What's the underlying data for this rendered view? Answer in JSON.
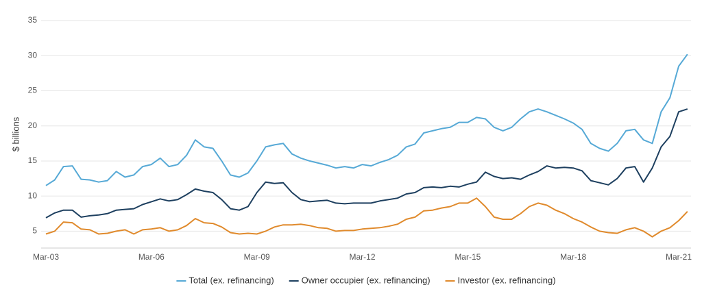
{
  "chart_data": {
    "type": "line",
    "y_label": "$ billions",
    "categories": [
      "Mar-03",
      null,
      null,
      null,
      null,
      null,
      null,
      null,
      null,
      null,
      null,
      null,
      "Mar-06",
      null,
      null,
      null,
      null,
      null,
      null,
      null,
      null,
      null,
      null,
      null,
      "Mar-09",
      null,
      null,
      null,
      null,
      null,
      null,
      null,
      null,
      null,
      null,
      null,
      "Mar-12",
      null,
      null,
      null,
      null,
      null,
      null,
      null,
      null,
      null,
      null,
      null,
      "Mar-15",
      null,
      null,
      null,
      null,
      null,
      null,
      null,
      null,
      null,
      null,
      null,
      "Mar-18",
      null,
      null,
      null,
      null,
      null,
      null,
      null,
      null,
      null,
      null,
      null,
      "Mar-21",
      null
    ],
    "series": [
      {
        "name": "Total (ex. refinancing)",
        "color": "#56a9d6",
        "values": [
          11.5,
          12.3,
          14.2,
          14.3,
          12.4,
          12.3,
          12.0,
          12.2,
          13.5,
          12.7,
          13.0,
          14.2,
          14.5,
          15.4,
          14.2,
          14.5,
          15.8,
          18.0,
          17.0,
          16.8,
          15.0,
          13.0,
          12.7,
          13.3,
          15.0,
          17.0,
          17.3,
          17.5,
          16.0,
          15.4,
          15.0,
          14.7,
          14.4,
          14.0,
          14.2,
          14.0,
          14.5,
          14.3,
          14.8,
          15.2,
          15.8,
          17.0,
          17.4,
          19.0,
          19.3,
          19.6,
          19.8,
          20.5,
          20.5,
          21.2,
          21.0,
          19.8,
          19.3,
          19.8,
          21.0,
          22.0,
          22.4,
          22.0,
          21.5,
          21.0,
          20.4,
          19.5,
          17.5,
          16.8,
          16.4,
          17.5,
          19.3,
          19.5,
          18.0,
          17.5,
          22.0,
          24.0,
          28.5,
          30.2
        ]
      },
      {
        "name": "Owner occupier (ex. refinancing)",
        "color": "#1d3f5f",
        "values": [
          6.9,
          7.6,
          8.0,
          8.0,
          7.0,
          7.2,
          7.3,
          7.5,
          8.0,
          8.1,
          8.2,
          8.8,
          9.2,
          9.6,
          9.3,
          9.5,
          10.2,
          11.0,
          10.7,
          10.5,
          9.5,
          8.2,
          8.0,
          8.5,
          10.5,
          12.0,
          11.8,
          11.9,
          10.5,
          9.5,
          9.2,
          9.3,
          9.4,
          9.0,
          8.9,
          9.0,
          9.0,
          9.0,
          9.3,
          9.5,
          9.7,
          10.3,
          10.5,
          11.2,
          11.3,
          11.2,
          11.4,
          11.3,
          11.7,
          12.0,
          13.4,
          12.8,
          12.5,
          12.6,
          12.4,
          13.0,
          13.5,
          14.3,
          14.0,
          14.1,
          14.0,
          13.6,
          12.2,
          11.9,
          11.6,
          12.5,
          14.0,
          14.2,
          12.0,
          14.0,
          17.0,
          18.5,
          22.0,
          22.4
        ]
      },
      {
        "name": "Investor (ex. refinancing)",
        "color": "#e08a2c",
        "values": [
          4.6,
          5.0,
          6.3,
          6.2,
          5.3,
          5.2,
          4.6,
          4.7,
          5.0,
          5.2,
          4.6,
          5.2,
          5.3,
          5.5,
          5.0,
          5.2,
          5.8,
          6.8,
          6.2,
          6.1,
          5.6,
          4.8,
          4.6,
          4.7,
          4.6,
          5.0,
          5.6,
          5.9,
          5.9,
          6.0,
          5.8,
          5.5,
          5.4,
          5.0,
          5.1,
          5.1,
          5.3,
          5.4,
          5.5,
          5.7,
          6.0,
          6.7,
          7.0,
          7.9,
          8.0,
          8.3,
          8.5,
          9.0,
          9.0,
          9.7,
          8.5,
          7.0,
          6.7,
          6.7,
          7.5,
          8.5,
          9.0,
          8.7,
          8.0,
          7.5,
          6.8,
          6.3,
          5.6,
          5.0,
          4.8,
          4.7,
          5.2,
          5.5,
          5.0,
          4.2,
          5.0,
          5.5,
          6.5,
          7.8
        ]
      }
    ],
    "ylim": [
      2.6,
      35
    ],
    "yticks": [
      5,
      10,
      15,
      20,
      25,
      30,
      35
    ],
    "grid": true,
    "legend": "bottom"
  }
}
